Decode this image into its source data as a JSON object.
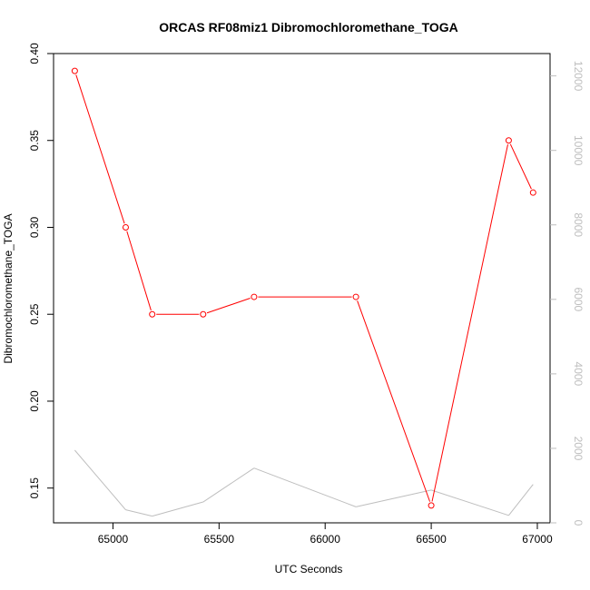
{
  "chart_data": {
    "type": "line",
    "title": "ORCAS RF08miz1 Dibromochloromethane_TOGA",
    "xlabel": "UTC Seconds",
    "ylabel": "Dibromochloromethane_TOGA",
    "xlim": [
      64720,
      67060
    ],
    "ylim": [
      0.13,
      0.4
    ],
    "y2lim": [
      0,
      12600
    ],
    "x_ticks": [
      "65000",
      "65500",
      "66000",
      "66500",
      "67000"
    ],
    "y_ticks": [
      "0.15",
      "0.20",
      "0.25",
      "0.30",
      "0.35",
      "0.40"
    ],
    "y2_ticks": [
      "0",
      "2000",
      "4000",
      "6000",
      "8000",
      "10000",
      "12000"
    ],
    "grid": false,
    "series": [
      {
        "color": "#ff0000",
        "marker": "open-circle",
        "axis": "left",
        "x": [
          64820,
          65060,
          65185,
          65425,
          65665,
          66145,
          66500,
          66865,
          66980
        ],
        "values": [
          0.39,
          0.3,
          0.25,
          0.25,
          0.26,
          0.26,
          0.14,
          0.35,
          0.32
        ]
      },
      {
        "color": "#bebebe",
        "marker": "none",
        "axis": "right",
        "x": [
          64820,
          65060,
          65185,
          65425,
          65665,
          66145,
          66500,
          66865,
          66980
        ],
        "values": [
          1950,
          350,
          180,
          560,
          1470,
          430,
          880,
          200,
          1030
        ]
      }
    ]
  }
}
